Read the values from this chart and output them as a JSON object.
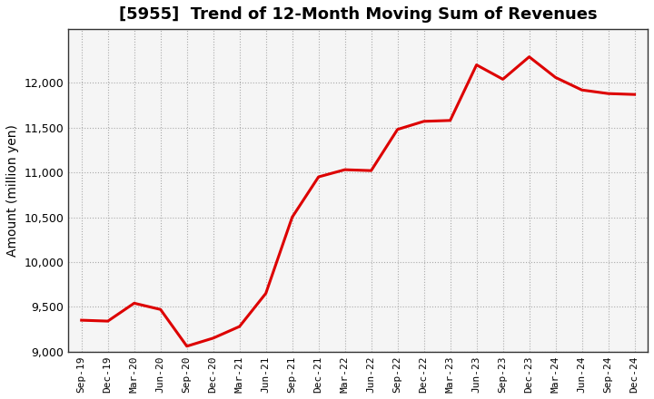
{
  "title": "[5955]  Trend of 12-Month Moving Sum of Revenues",
  "ylabel": "Amount (million yen)",
  "line_color": "#DD0000",
  "background_color": "#ffffff",
  "plot_bg_color": "#f5f5f5",
  "grid_color": "#aaaaaa",
  "xlabels": [
    "Sep-19",
    "Dec-19",
    "Mar-20",
    "Jun-20",
    "Sep-20",
    "Dec-20",
    "Mar-21",
    "Jun-21",
    "Sep-21",
    "Dec-21",
    "Mar-22",
    "Jun-22",
    "Sep-22",
    "Dec-22",
    "Mar-23",
    "Jun-23",
    "Sep-23",
    "Dec-23",
    "Mar-24",
    "Jun-24",
    "Sep-24",
    "Dec-24"
  ],
  "yvalues": [
    9350,
    9340,
    9540,
    9470,
    9060,
    9150,
    9280,
    9650,
    10500,
    10950,
    11030,
    11020,
    11480,
    11570,
    11580,
    12200,
    12040,
    12290,
    12060,
    11920,
    11880,
    11870
  ],
  "ylim": [
    9000,
    12600
  ],
  "yticks": [
    9000,
    9500,
    10000,
    10500,
    11000,
    11500,
    12000
  ],
  "title_fontsize": 13,
  "ylabel_fontsize": 10,
  "tick_labelsize": 9,
  "xtick_labelsize": 8,
  "line_width": 2.2
}
